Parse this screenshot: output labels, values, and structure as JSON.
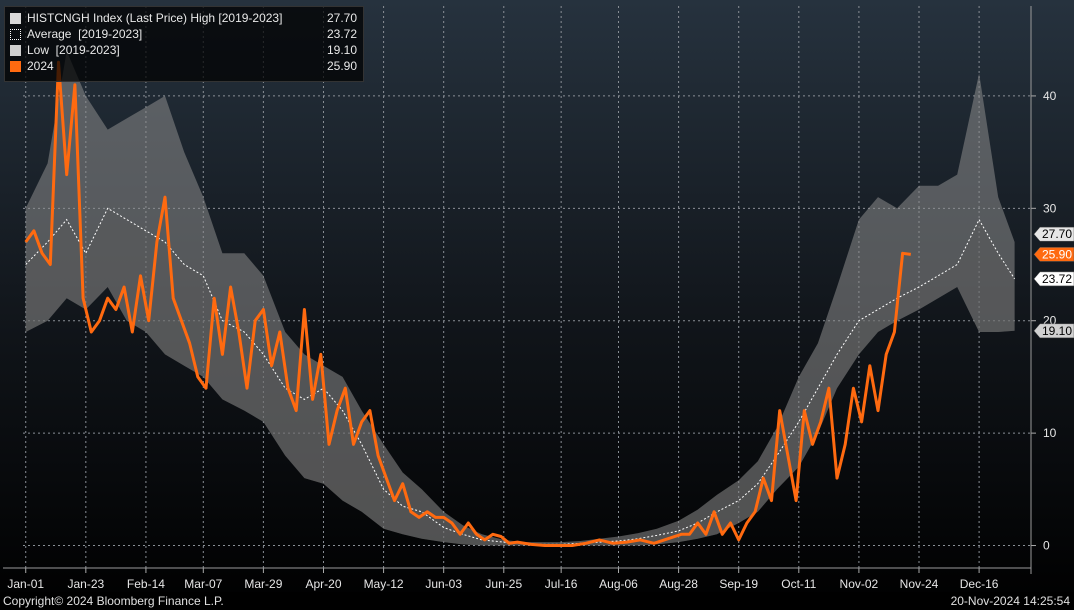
{
  "legend": [
    {
      "name": "HISTCNGH Index (Last Price) High [2019-2023]",
      "value": "27.70",
      "color": "#d9d9d9",
      "style": "solid"
    },
    {
      "name": "Average  [2019-2023]",
      "value": "23.72",
      "color": "#ffffff",
      "style": "dotted"
    },
    {
      "name": "Low  [2019-2023]",
      "value": "19.10",
      "color": "#cfcfcf",
      "style": "solid"
    },
    {
      "name": "2024",
      "value": "25.90",
      "color": "#ff6a10",
      "style": "solid"
    }
  ],
  "badges": [
    {
      "label": "27.70",
      "value": 27.7,
      "bg": "#e6e6e6",
      "fg": "#000000"
    },
    {
      "label": "25.90",
      "value": 25.9,
      "bg": "#ff6a10",
      "fg": "#ffffff"
    },
    {
      "label": "23.72",
      "value": 23.72,
      "bg": "#ffffff",
      "fg": "#000000"
    },
    {
      "label": "19.10",
      "value": 19.1,
      "bg": "#d0d0d0",
      "fg": "#000000"
    }
  ],
  "footer": {
    "copyright": "Copyright© 2024 Bloomberg Finance L.P.",
    "timestamp": "20-Nov-2024 14:25:54"
  },
  "chart_data": {
    "type": "area",
    "x_tick_labels": [
      "Jan-01",
      "Jan-23",
      "Feb-14",
      "Mar-07",
      "Mar-29",
      "Apr-20",
      "May-12",
      "Jun-03",
      "Jun-25",
      "Jul-16",
      "Aug-06",
      "Aug-28",
      "Sep-19",
      "Oct-11",
      "Nov-02",
      "Nov-24",
      "Dec-16"
    ],
    "x_tick_days": [
      0,
      22,
      44,
      65,
      87,
      109,
      131,
      153,
      175,
      196,
      217,
      239,
      261,
      283,
      305,
      327,
      349
    ],
    "y_ticks": [
      0,
      10,
      20,
      30,
      40
    ],
    "ylim": [
      -2,
      48
    ],
    "xlim": [
      -1,
      368
    ],
    "grid": true,
    "legend_position": "top-left",
    "series": [
      {
        "name": "HISTCNGH Index (Last Price) High [2019-2023]",
        "x": [
          0,
          8,
          15,
          22,
          30,
          37,
          44,
          51,
          58,
          65,
          72,
          80,
          87,
          95,
          102,
          109,
          116,
          123,
          131,
          138,
          145,
          153,
          160,
          167,
          175,
          182,
          189,
          196,
          203,
          210,
          217,
          224,
          231,
          239,
          246,
          253,
          261,
          268,
          275,
          283,
          290,
          297,
          305,
          312,
          319,
          327,
          334,
          341,
          349,
          356,
          362
        ],
        "values": [
          30,
          34,
          44,
          40,
          37,
          38,
          39,
          40,
          35,
          31,
          26,
          26,
          24,
          19,
          17,
          16,
          15,
          12,
          9,
          6.5,
          5,
          3,
          1.8,
          1,
          0.5,
          0.3,
          0.3,
          0.3,
          0.4,
          0.6,
          0.8,
          1.1,
          1.5,
          2.2,
          3.2,
          4.5,
          5.8,
          7.5,
          10.5,
          15,
          18,
          23,
          29,
          31,
          30,
          32,
          32,
          33,
          42,
          31,
          27
        ]
      },
      {
        "name": "Average  [2019-2023]",
        "x": [
          0,
          8,
          15,
          22,
          30,
          37,
          44,
          51,
          58,
          65,
          72,
          80,
          87,
          95,
          102,
          109,
          116,
          123,
          131,
          138,
          145,
          153,
          160,
          167,
          175,
          182,
          189,
          196,
          203,
          210,
          217,
          224,
          231,
          239,
          246,
          253,
          261,
          268,
          275,
          283,
          290,
          297,
          305,
          312,
          319,
          327,
          334,
          341,
          349,
          356,
          362
        ],
        "values": [
          25,
          27,
          29,
          26,
          30,
          29,
          28,
          27,
          25,
          24,
          20,
          19,
          17,
          14,
          13,
          14,
          12,
          9,
          5,
          3.5,
          3,
          1.6,
          1,
          0.5,
          0.3,
          0.2,
          0.1,
          0.1,
          0.2,
          0.3,
          0.4,
          0.6,
          0.9,
          1.3,
          2,
          3,
          4,
          5.5,
          8,
          11,
          14,
          17,
          20,
          21,
          22,
          23,
          24,
          25,
          29,
          26,
          23.72
        ]
      },
      {
        "name": "Low  [2019-2023]",
        "x": [
          0,
          8,
          15,
          22,
          30,
          37,
          44,
          51,
          58,
          65,
          72,
          80,
          87,
          95,
          102,
          109,
          116,
          123,
          131,
          138,
          145,
          153,
          160,
          167,
          175,
          182,
          189,
          196,
          203,
          210,
          217,
          224,
          231,
          239,
          246,
          253,
          261,
          268,
          275,
          283,
          290,
          297,
          305,
          312,
          319,
          327,
          334,
          341,
          349,
          356,
          362
        ],
        "values": [
          19,
          20,
          22,
          21,
          23,
          20,
          19,
          17,
          16,
          15,
          13,
          12,
          11,
          8,
          6,
          5.5,
          4,
          3,
          1.5,
          1,
          0.6,
          0.3,
          0.1,
          0,
          0,
          0,
          0,
          0,
          0,
          0,
          0,
          0,
          0.1,
          0.3,
          0.6,
          1,
          2,
          3,
          5,
          7,
          10,
          14,
          17,
          19,
          20,
          21,
          22,
          23,
          19,
          19,
          19.1
        ]
      },
      {
        "name": "2024",
        "x": [
          0,
          3,
          6,
          9,
          12,
          15,
          18,
          21,
          24,
          27,
          30,
          33,
          36,
          39,
          42,
          45,
          48,
          51,
          54,
          57,
          60,
          63,
          66,
          69,
          72,
          75,
          78,
          81,
          84,
          87,
          90,
          93,
          96,
          99,
          102,
          105,
          108,
          111,
          114,
          117,
          120,
          123,
          126,
          129,
          132,
          135,
          138,
          141,
          144,
          147,
          150,
          153,
          156,
          159,
          162,
          165,
          168,
          171,
          174,
          177,
          180,
          185,
          190,
          195,
          200,
          205,
          210,
          215,
          220,
          225,
          230,
          235,
          240,
          243,
          246,
          249,
          252,
          255,
          258,
          261,
          264,
          267,
          270,
          273,
          276,
          279,
          282,
          285,
          288,
          291,
          294,
          297,
          300,
          303,
          306,
          309,
          312,
          315,
          318,
          321,
          324
        ],
        "values": [
          27,
          28,
          26,
          25,
          43,
          33,
          41,
          22,
          19,
          20,
          22,
          21,
          23,
          19,
          24,
          20,
          27,
          31,
          22,
          20,
          18,
          15,
          14,
          22,
          17,
          23,
          19,
          14,
          20,
          21,
          16,
          19,
          14,
          12,
          21,
          13,
          17,
          9,
          12,
          14,
          9,
          11,
          12,
          8,
          6,
          4,
          5.5,
          3,
          2.5,
          3,
          2.5,
          2.5,
          2,
          1,
          2,
          1,
          0.5,
          1,
          0.8,
          0.2,
          0.3,
          0.1,
          0,
          0,
          0,
          0.2,
          0.5,
          0.2,
          0.3,
          0.5,
          0.2,
          0.6,
          1,
          1,
          2,
          1,
          3,
          1,
          2,
          0.5,
          2,
          3,
          6,
          4,
          12,
          8,
          4,
          12,
          9,
          11,
          14,
          6,
          9,
          14,
          11,
          16,
          12,
          17,
          19,
          26,
          25.9
        ]
      }
    ]
  }
}
